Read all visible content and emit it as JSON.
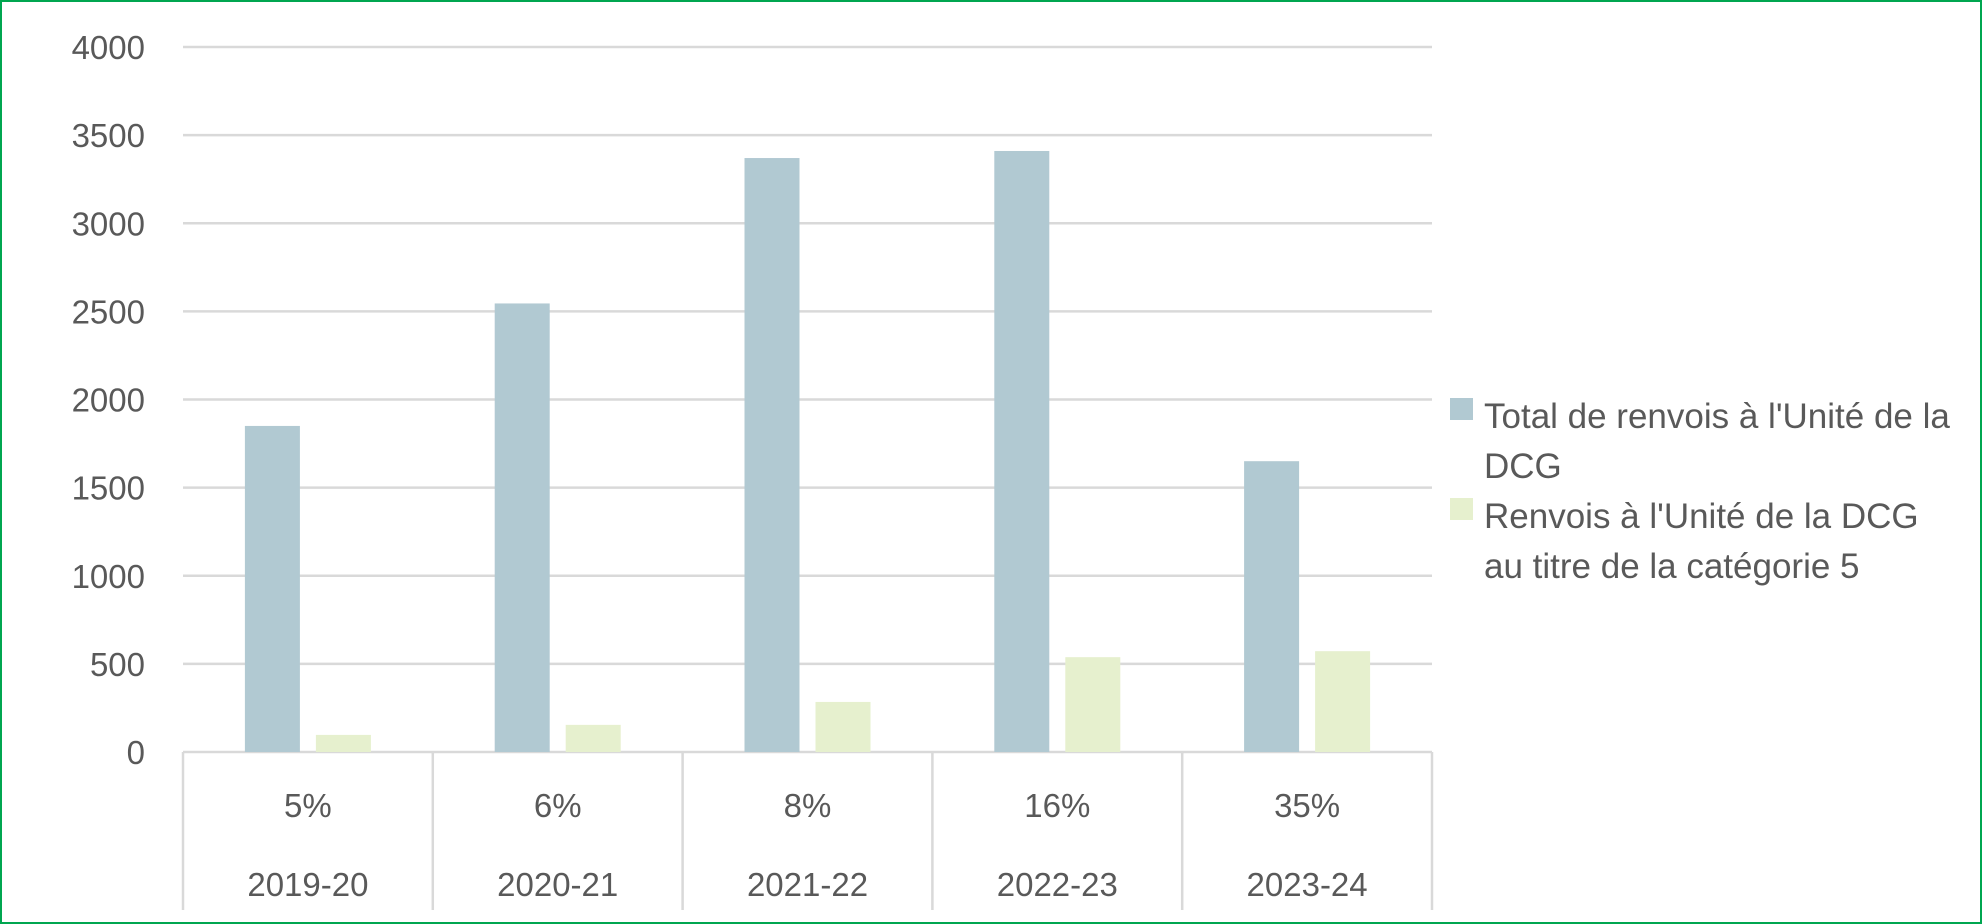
{
  "chart_data": {
    "type": "bar",
    "categories": [
      {
        "pct": "5%",
        "year": "2019-20"
      },
      {
        "pct": "6%",
        "year": "2020-21"
      },
      {
        "pct": "8%",
        "year": "2021-22"
      },
      {
        "pct": "16%",
        "year": "2022-23"
      },
      {
        "pct": "35%",
        "year": "2023-24"
      }
    ],
    "series": [
      {
        "name": "Total de renvois à l'Unité de la DCG",
        "color": "#b1c9d2",
        "values": [
          1850,
          2545,
          3370,
          3410,
          1650
        ]
      },
      {
        "name": "Renvois à l'Unité de la DCG au titre de la catégorie 5",
        "color": "#e6f0ce",
        "values": [
          97,
          154,
          284,
          538,
          572
        ]
      }
    ],
    "yticks": [
      "0",
      "500",
      "1000",
      "1500",
      "2000",
      "2500",
      "3000",
      "3500",
      "4000"
    ],
    "ylim": [
      0,
      4000
    ],
    "grid": true,
    "legend_position": "right",
    "frame_color": "#00a650"
  }
}
